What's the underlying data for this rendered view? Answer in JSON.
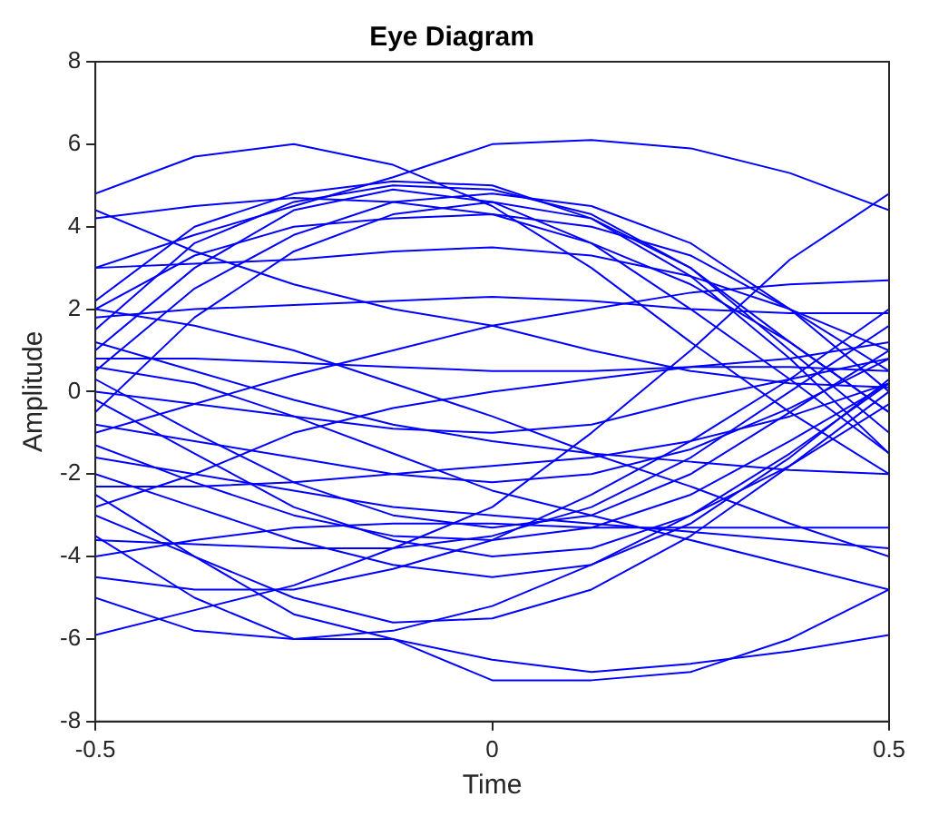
{
  "chart_data": {
    "type": "line",
    "title": "Eye Diagram",
    "xlabel": "Time",
    "ylabel": "Amplitude",
    "x": [
      -0.5,
      -0.375,
      -0.25,
      -0.125,
      0,
      0.125,
      0.25,
      0.375,
      0.5
    ],
    "xlim": [
      -0.5,
      0.5
    ],
    "xticks": [
      -0.5,
      0,
      0.5
    ],
    "ylim": [
      -8,
      8
    ],
    "yticks": [
      -8,
      -6,
      -4,
      -2,
      0,
      2,
      4,
      6,
      8
    ],
    "grid": false,
    "legend": false,
    "marker": "none",
    "line_style": "solid",
    "series": [
      {
        "color": "#0000ff",
        "values": [
          4.8,
          5.7,
          6.0,
          5.5,
          4.5,
          3.0,
          1.2,
          -0.5,
          -2.0
        ]
      },
      {
        "color": "#0000ff",
        "values": [
          2.2,
          4.0,
          4.8,
          5.1,
          5.0,
          4.2,
          2.8,
          0.8,
          -1.5
        ]
      },
      {
        "color": "#0000ff",
        "values": [
          1.5,
          3.6,
          4.6,
          5.0,
          4.9,
          4.3,
          3.0,
          1.2,
          -0.5
        ]
      },
      {
        "color": "#0000ff",
        "values": [
          1.0,
          3.0,
          4.4,
          4.9,
          4.6,
          3.6,
          2.0,
          0.3,
          -1.5
        ]
      },
      {
        "color": "#0000ff",
        "values": [
          0.5,
          2.5,
          3.8,
          4.6,
          4.8,
          4.5,
          3.6,
          2.0,
          0.0
        ]
      },
      {
        "color": "#0000ff",
        "values": [
          -0.5,
          1.8,
          3.4,
          4.3,
          4.6,
          4.2,
          3.0,
          1.0,
          -1.0
        ]
      },
      {
        "color": "#0000ff",
        "values": [
          2.0,
          3.3,
          4.0,
          4.2,
          4.3,
          4.0,
          3.3,
          2.0,
          0.5
        ]
      },
      {
        "color": "#0000ff",
        "values": [
          4.4,
          3.4,
          2.6,
          2.0,
          1.6,
          1.0,
          0.5,
          0.2,
          0.1
        ]
      },
      {
        "color": "#0000ff",
        "values": [
          1.8,
          2.0,
          2.1,
          2.2,
          2.3,
          2.2,
          2.0,
          1.9,
          1.9
        ]
      },
      {
        "color": "#0000ff",
        "values": [
          -1.0,
          -0.3,
          0.4,
          1.0,
          1.6,
          2.0,
          2.4,
          2.6,
          2.7
        ]
      },
      {
        "color": "#0000ff",
        "values": [
          3.0,
          3.8,
          4.5,
          5.2,
          6.0,
          6.1,
          5.9,
          5.3,
          4.4
        ]
      },
      {
        "color": "#0000ff",
        "values": [
          -5.9,
          -5.3,
          -4.7,
          -3.8,
          -2.8,
          -1.0,
          1.0,
          3.2,
          4.8
        ]
      },
      {
        "color": "#0000ff",
        "values": [
          -2.0,
          -2.8,
          -3.6,
          -4.2,
          -4.5,
          -4.2,
          -3.2,
          -1.6,
          0.3
        ]
      },
      {
        "color": "#0000ff",
        "values": [
          -3.0,
          -4.0,
          -5.0,
          -5.6,
          -5.5,
          -4.8,
          -3.5,
          -1.8,
          0.0
        ]
      },
      {
        "color": "#0000ff",
        "values": [
          -2.5,
          -4.0,
          -5.4,
          -6.0,
          -6.5,
          -6.8,
          -6.6,
          -6.3,
          -5.9
        ]
      },
      {
        "color": "#0000ff",
        "values": [
          -3.5,
          -5.0,
          -6.0,
          -6.0,
          -7.0,
          -7.0,
          -6.8,
          -6.0,
          -4.8
        ]
      },
      {
        "color": "#0000ff",
        "values": [
          -0.2,
          -1.5,
          -2.8,
          -3.6,
          -4.0,
          -3.8,
          -3.0,
          -1.8,
          -0.3
        ]
      },
      {
        "color": "#0000ff",
        "values": [
          0.3,
          -1.0,
          -2.2,
          -3.0,
          -3.3,
          -3.0,
          -2.0,
          -0.5,
          1.0
        ]
      },
      {
        "color": "#0000ff",
        "values": [
          -1.6,
          -2.0,
          -2.4,
          -2.8,
          -3.0,
          -3.2,
          -3.4,
          -3.6,
          -3.8
        ]
      },
      {
        "color": "#0000ff",
        "values": [
          -4.0,
          -3.6,
          -3.3,
          -3.2,
          -3.2,
          -3.3,
          -3.3,
          -3.3,
          -3.3
        ]
      },
      {
        "color": "#0000ff",
        "values": [
          -3.6,
          -3.7,
          -3.8,
          -3.8,
          -3.5,
          -2.8,
          -1.6,
          0.0,
          1.6
        ]
      },
      {
        "color": "#0000ff",
        "values": [
          -0.8,
          -1.2,
          -1.6,
          -2.0,
          -2.2,
          -2.0,
          -1.4,
          -0.4,
          0.8
        ]
      },
      {
        "color": "#0000ff",
        "values": [
          0.0,
          -0.3,
          -0.6,
          -0.9,
          -1.0,
          -0.8,
          -0.2,
          0.3,
          0.8
        ]
      },
      {
        "color": "#0000ff",
        "values": [
          -2.8,
          -2.0,
          -1.0,
          -0.4,
          0.0,
          0.3,
          0.6,
          0.6,
          0.5
        ]
      },
      {
        "color": "#0000ff",
        "values": [
          1.2,
          0.5,
          -0.2,
          -0.8,
          -1.2,
          -1.5,
          -1.7,
          -1.9,
          -2.0
        ]
      },
      {
        "color": "#0000ff",
        "values": [
          0.6,
          0.2,
          -0.6,
          -1.5,
          -2.4,
          -3.0,
          -3.6,
          -4.2,
          -4.8
        ]
      },
      {
        "color": "#0000ff",
        "values": [
          2.0,
          1.6,
          1.0,
          0.2,
          -0.6,
          -1.5,
          -2.3,
          -3.2,
          -4.0
        ]
      },
      {
        "color": "#0000ff",
        "values": [
          4.2,
          4.5,
          4.7,
          4.6,
          4.3,
          3.6,
          2.6,
          1.2,
          -0.5
        ]
      },
      {
        "color": "#0000ff",
        "values": [
          -1.3,
          -2.2,
          -3.0,
          -3.5,
          -3.6,
          -3.3,
          -2.5,
          -1.2,
          0.2
        ]
      },
      {
        "color": "#0000ff",
        "values": [
          3.0,
          3.1,
          3.2,
          3.4,
          3.5,
          3.3,
          2.8,
          2.0,
          1.0
        ]
      },
      {
        "color": "#0000ff",
        "values": [
          -4.5,
          -4.8,
          -4.8,
          -4.3,
          -3.6,
          -2.5,
          -1.2,
          0.3,
          2.0
        ]
      },
      {
        "color": "#0000ff",
        "values": [
          -5.0,
          -5.8,
          -6.0,
          -5.8,
          -5.2,
          -4.2,
          -3.0,
          -1.5,
          0.2
        ]
      },
      {
        "color": "#0000ff",
        "values": [
          0.8,
          0.8,
          0.7,
          0.6,
          0.5,
          0.5,
          0.6,
          0.8,
          1.2
        ]
      },
      {
        "color": "#0000ff",
        "values": [
          -2.3,
          -2.3,
          -2.2,
          -2.0,
          -1.8,
          -1.6,
          -1.2,
          -0.6,
          0.2
        ]
      }
    ]
  }
}
